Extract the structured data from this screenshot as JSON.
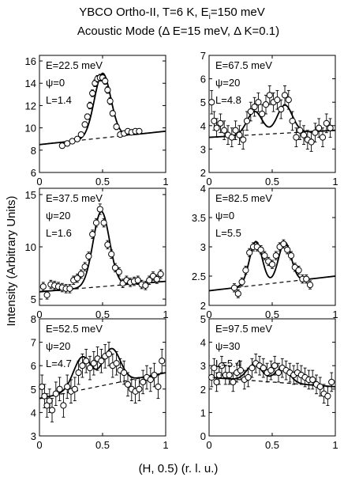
{
  "figure": {
    "title_line1": "YBCO Ortho-II, T=6 K, E",
    "title_line1_sub": "i",
    "title_line1_tail": "=150 meV",
    "title_line2": "Acoustic Mode  (Δ E=15 meV, Δ K=0.1)",
    "ylabel": "Intensity (Arbitrary Units)",
    "xlabel": "(H, 0.5) (r. l. u.)"
  },
  "chart_data": [
    {
      "type": "scatter",
      "annotations": [
        "E=22.5 meV",
        "ψ=0",
        "L=1.4"
      ],
      "xlim": [
        0,
        1
      ],
      "ylim": [
        6,
        16.5
      ],
      "xticks": [
        "0",
        "0.5",
        "1"
      ],
      "yticks": [
        "6",
        "8",
        "10",
        "12",
        "14",
        "16"
      ],
      "x": [
        0.18,
        0.22,
        0.26,
        0.3,
        0.33,
        0.36,
        0.38,
        0.4,
        0.42,
        0.44,
        0.46,
        0.48,
        0.5,
        0.52,
        0.54,
        0.56,
        0.58,
        0.61,
        0.64,
        0.67,
        0.7,
        0.73,
        0.76,
        0.79
      ],
      "y": [
        8.4,
        8.6,
        8.8,
        9.0,
        9.4,
        10.3,
        11.0,
        12.0,
        13.1,
        14.0,
        14.4,
        14.5,
        14.5,
        14.2,
        13.4,
        12.4,
        11.3,
        10.1,
        9.4,
        9.5,
        9.7,
        9.6,
        9.7,
        9.7
      ],
      "err": [
        0.2,
        0.2,
        0.2,
        0.2,
        0.2,
        0.25,
        0.25,
        0.3,
        0.3,
        0.3,
        0.3,
        0.3,
        0.3,
        0.3,
        0.3,
        0.3,
        0.25,
        0.25,
        0.2,
        0.2,
        0.2,
        0.2,
        0.2,
        0.2
      ],
      "fit": {
        "baseline": [
          8.5,
          1.2
        ],
        "peaks": [
          {
            "center": 0.5,
            "amp": 5.8,
            "width": 0.065
          }
        ]
      }
    },
    {
      "type": "scatter",
      "annotations": [
        "E=67.5 meV",
        "ψ=20",
        "L=4.8"
      ],
      "xlim": [
        0,
        1
      ],
      "ylim": [
        2,
        7
      ],
      "xticks": [
        "0",
        "0.5",
        "1"
      ],
      "yticks": [
        "2",
        "3",
        "4",
        "5",
        "6",
        "7"
      ],
      "x": [
        0.02,
        0.04,
        0.06,
        0.09,
        0.12,
        0.15,
        0.18,
        0.21,
        0.24,
        0.27,
        0.3,
        0.33,
        0.36,
        0.39,
        0.42,
        0.45,
        0.48,
        0.51,
        0.54,
        0.57,
        0.6,
        0.63,
        0.66,
        0.69,
        0.72,
        0.75,
        0.78,
        0.81,
        0.84,
        0.87,
        0.9,
        0.93,
        0.96
      ],
      "y": [
        5.0,
        4.2,
        3.9,
        4.1,
        3.8,
        3.6,
        3.5,
        3.8,
        3.6,
        3.4,
        4.2,
        4.6,
        4.8,
        5.0,
        4.5,
        4.9,
        5.3,
        5.0,
        5.1,
        4.7,
        5.3,
        5.1,
        4.2,
        3.5,
        3.8,
        3.6,
        3.4,
        3.3,
        3.7,
        3.9,
        3.5,
        4.1,
        3.9
      ],
      "err": [
        0.5,
        0.4,
        0.4,
        0.4,
        0.4,
        0.4,
        0.4,
        0.4,
        0.4,
        0.4,
        0.4,
        0.4,
        0.4,
        0.4,
        0.4,
        0.4,
        0.4,
        0.4,
        0.4,
        0.4,
        0.4,
        0.4,
        0.4,
        0.4,
        0.4,
        0.4,
        0.4,
        0.4,
        0.4,
        0.4,
        0.4,
        0.4,
        0.4
      ],
      "fit": {
        "baseline": [
          3.5,
          0.3
        ],
        "peaks": [
          {
            "center": 0.36,
            "amp": 1.0,
            "width": 0.06
          },
          {
            "center": 0.6,
            "amp": 1.2,
            "width": 0.06
          }
        ]
      }
    },
    {
      "type": "scatter",
      "annotations": [
        "E=37.5 meV",
        "ψ=20",
        "L=1.6"
      ],
      "xlim": [
        0,
        1
      ],
      "ylim": [
        4.4,
        15.6
      ],
      "xticks": [
        "0",
        "0.5",
        "1"
      ],
      "yticks": [
        "5",
        "10",
        "15"
      ],
      "x": [
        0.03,
        0.06,
        0.09,
        0.12,
        0.15,
        0.18,
        0.21,
        0.24,
        0.27,
        0.3,
        0.33,
        0.36,
        0.39,
        0.42,
        0.45,
        0.48,
        0.51,
        0.54,
        0.57,
        0.6,
        0.63,
        0.66,
        0.69,
        0.72,
        0.75,
        0.78,
        0.81,
        0.84,
        0.87,
        0.9,
        0.93,
        0.96
      ],
      "y": [
        6.2,
        5.4,
        6.4,
        6.3,
        6.2,
        6.1,
        6.0,
        6.0,
        6.8,
        7.0,
        7.4,
        8.1,
        9.1,
        11.2,
        12.3,
        13.6,
        12.3,
        10.2,
        9.3,
        8.0,
        7.6,
        6.5,
        6.8,
        6.6,
        6.7,
        6.8,
        6.4,
        6.3,
        6.8,
        7.2,
        6.9,
        7.4
      ],
      "err": [
        0.4,
        0.4,
        0.4,
        0.4,
        0.4,
        0.4,
        0.4,
        0.4,
        0.4,
        0.4,
        0.4,
        0.4,
        0.4,
        0.4,
        0.4,
        0.5,
        0.4,
        0.4,
        0.4,
        0.4,
        0.4,
        0.4,
        0.4,
        0.4,
        0.4,
        0.4,
        0.4,
        0.4,
        0.4,
        0.4,
        0.4,
        0.4
      ],
      "fit": {
        "baseline": [
          5.7,
          1.0
        ],
        "peaks": [
          {
            "center": 0.49,
            "amp": 7.2,
            "width": 0.065
          }
        ]
      }
    },
    {
      "type": "scatter",
      "annotations": [
        "E=82.5 meV",
        "ψ=0",
        "L=5.5"
      ],
      "xlim": [
        0,
        1
      ],
      "ylim": [
        2,
        4
      ],
      "xticks": [
        "0",
        "0.5",
        "1"
      ],
      "yticks": [
        "2",
        "2.5",
        "3",
        "3.5",
        "4"
      ],
      "x": [
        0.2,
        0.23,
        0.26,
        0.29,
        0.32,
        0.35,
        0.38,
        0.41,
        0.44,
        0.47,
        0.5,
        0.53,
        0.56,
        0.59,
        0.62,
        0.65,
        0.68,
        0.71,
        0.74,
        0.77,
        0.8
      ],
      "y": [
        2.3,
        2.2,
        2.4,
        2.6,
        2.9,
        3.0,
        3.0,
        2.95,
        2.85,
        2.75,
        2.7,
        2.85,
        3.0,
        3.05,
        2.95,
        2.85,
        2.65,
        2.6,
        2.45,
        2.45,
        2.35
      ],
      "err": [
        0.07,
        0.07,
        0.07,
        0.07,
        0.07,
        0.07,
        0.07,
        0.07,
        0.07,
        0.07,
        0.07,
        0.07,
        0.07,
        0.07,
        0.07,
        0.07,
        0.07,
        0.07,
        0.07,
        0.07,
        0.07
      ],
      "fit": {
        "baseline": [
          2.25,
          0.25
        ],
        "peaks": [
          {
            "center": 0.37,
            "amp": 0.75,
            "width": 0.05
          },
          {
            "center": 0.6,
            "amp": 0.68,
            "width": 0.05
          }
        ]
      }
    },
    {
      "type": "scatter",
      "annotations": [
        "E=52.5 meV",
        "ψ=20",
        "L=4.7"
      ],
      "xlim": [
        0,
        1
      ],
      "ylim": [
        3,
        8
      ],
      "xticks": [
        "0",
        "0.5",
        "1"
      ],
      "yticks": [
        "3",
        "4",
        "5",
        "6",
        "7",
        "8"
      ],
      "x": [
        0.02,
        0.04,
        0.06,
        0.08,
        0.1,
        0.13,
        0.16,
        0.19,
        0.22,
        0.25,
        0.28,
        0.31,
        0.34,
        0.37,
        0.4,
        0.43,
        0.46,
        0.49,
        0.52,
        0.55,
        0.58,
        0.61,
        0.64,
        0.67,
        0.7,
        0.73,
        0.76,
        0.79,
        0.82,
        0.85,
        0.88,
        0.91,
        0.94,
        0.97
      ],
      "y": [
        5.1,
        4.7,
        4.3,
        4.5,
        4.1,
        4.8,
        5.0,
        4.3,
        5.1,
        4.9,
        5.0,
        5.7,
        6.0,
        6.2,
        5.9,
        6.1,
        6.3,
        6.2,
        6.4,
        6.5,
        6.0,
        6.1,
        5.8,
        5.7,
        5.2,
        5.0,
        4.9,
        5.0,
        5.3,
        5.5,
        5.4,
        5.6,
        5.1,
        6.2
      ],
      "err": [
        0.5,
        0.5,
        0.5,
        0.5,
        0.5,
        0.5,
        0.5,
        0.5,
        0.5,
        0.5,
        0.5,
        0.5,
        0.5,
        0.5,
        0.5,
        0.5,
        0.5,
        0.5,
        0.5,
        0.5,
        0.5,
        0.5,
        0.5,
        0.5,
        0.5,
        0.5,
        0.5,
        0.5,
        0.5,
        0.5,
        0.5,
        0.5,
        0.5,
        0.5
      ],
      "fit": {
        "baseline": [
          4.6,
          1.1
        ],
        "peaks": [
          {
            "center": 0.34,
            "amp": 1.4,
            "width": 0.07
          },
          {
            "center": 0.57,
            "amp": 1.5,
            "width": 0.07
          }
        ]
      }
    },
    {
      "type": "scatter",
      "annotations": [
        "E=97.5 meV",
        "ψ=30",
        "L=5.4"
      ],
      "xlim": [
        0,
        1
      ],
      "ylim": [
        0,
        5
      ],
      "xticks": [
        "0",
        "0.5",
        "1"
      ],
      "yticks": [
        "0",
        "1",
        "2",
        "3",
        "4",
        "5"
      ],
      "x": [
        0.02,
        0.04,
        0.06,
        0.08,
        0.1,
        0.13,
        0.16,
        0.19,
        0.22,
        0.25,
        0.28,
        0.31,
        0.34,
        0.37,
        0.4,
        0.43,
        0.46,
        0.49,
        0.52,
        0.55,
        0.58,
        0.61,
        0.64,
        0.67,
        0.7,
        0.73,
        0.76,
        0.79,
        0.82,
        0.85,
        0.88,
        0.91,
        0.94,
        0.97
      ],
      "y": [
        2.5,
        2.9,
        2.3,
        2.6,
        3.0,
        2.6,
        2.6,
        2.3,
        2.7,
        2.8,
        2.4,
        2.5,
        2.9,
        3.1,
        3.0,
        2.9,
        2.7,
        2.8,
        3.0,
        2.7,
        2.9,
        2.8,
        2.7,
        2.6,
        2.7,
        2.6,
        2.5,
        2.4,
        2.4,
        2.2,
        2.1,
        1.8,
        1.7,
        2.3
      ],
      "err": [
        0.4,
        0.4,
        0.4,
        0.4,
        0.4,
        0.4,
        0.4,
        0.4,
        0.4,
        0.4,
        0.4,
        0.4,
        0.4,
        0.4,
        0.4,
        0.4,
        0.4,
        0.4,
        0.4,
        0.4,
        0.4,
        0.4,
        0.4,
        0.4,
        0.4,
        0.4,
        0.4,
        0.4,
        0.4,
        0.4,
        0.4,
        0.4,
        0.4,
        0.4
      ],
      "fit": {
        "baseline": [
          2.5,
          -0.4
        ],
        "peaks": [
          {
            "center": 0.36,
            "amp": 0.7,
            "width": 0.06
          },
          {
            "center": 0.58,
            "amp": 0.6,
            "width": 0.06
          }
        ]
      }
    }
  ]
}
